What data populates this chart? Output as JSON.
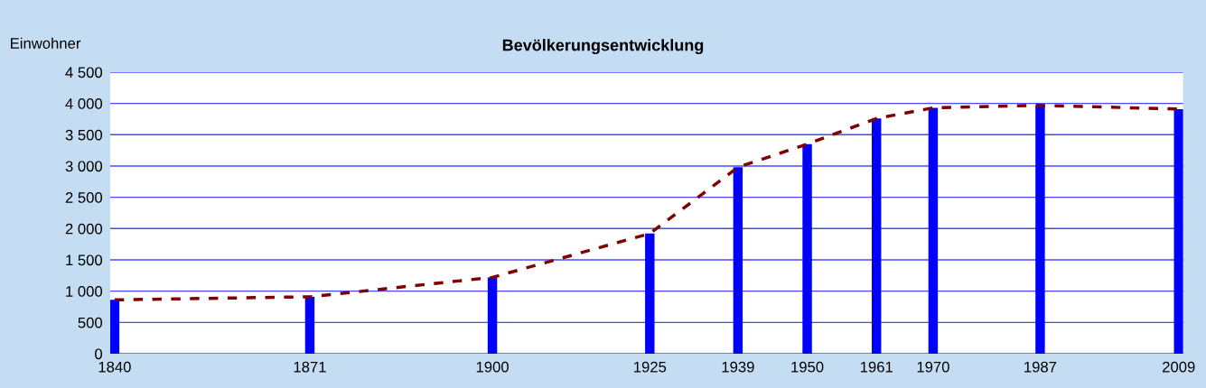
{
  "chart_data": {
    "type": "bar",
    "title": "Bevölkerungsentwicklung",
    "ylabel": "Einwohner",
    "x": [
      1840,
      1871,
      1900,
      1925,
      1939,
      1950,
      1961,
      1970,
      1987,
      2009
    ],
    "series": [
      {
        "color": "#0000ff",
        "values": [
          860,
          910,
          1220,
          1920,
          2980,
          3350,
          3760,
          3930,
          3970,
          3910
        ]
      },
      {
        "type": "line",
        "color": "#800000",
        "line_style": "dashed",
        "values": [
          860,
          910,
          1220,
          1920,
          2980,
          3350,
          3760,
          3930,
          3970,
          3910
        ]
      }
    ],
    "xlim": [
      1839.3,
      2009.7
    ],
    "xticks": [
      1840,
      1871,
      1900,
      1925,
      1939,
      1950,
      1961,
      1970,
      1987,
      2009
    ],
    "ylim": [
      0,
      4500
    ],
    "yticks": [
      0,
      500,
      {
        "value": 1000,
        "label": "1 000"
      },
      {
        "value": 1500,
        "label": "1 500"
      },
      {
        "value": 2000,
        "label": "2 000"
      },
      {
        "value": 2500,
        "label": "2 500"
      },
      {
        "value": 3000,
        "label": "3 000"
      },
      {
        "value": 3500,
        "label": "3 500"
      },
      {
        "value": 4000,
        "label": "4 000"
      },
      {
        "value": 4500,
        "label": "4 500"
      }
    ],
    "grid": "y",
    "legend": false
  }
}
